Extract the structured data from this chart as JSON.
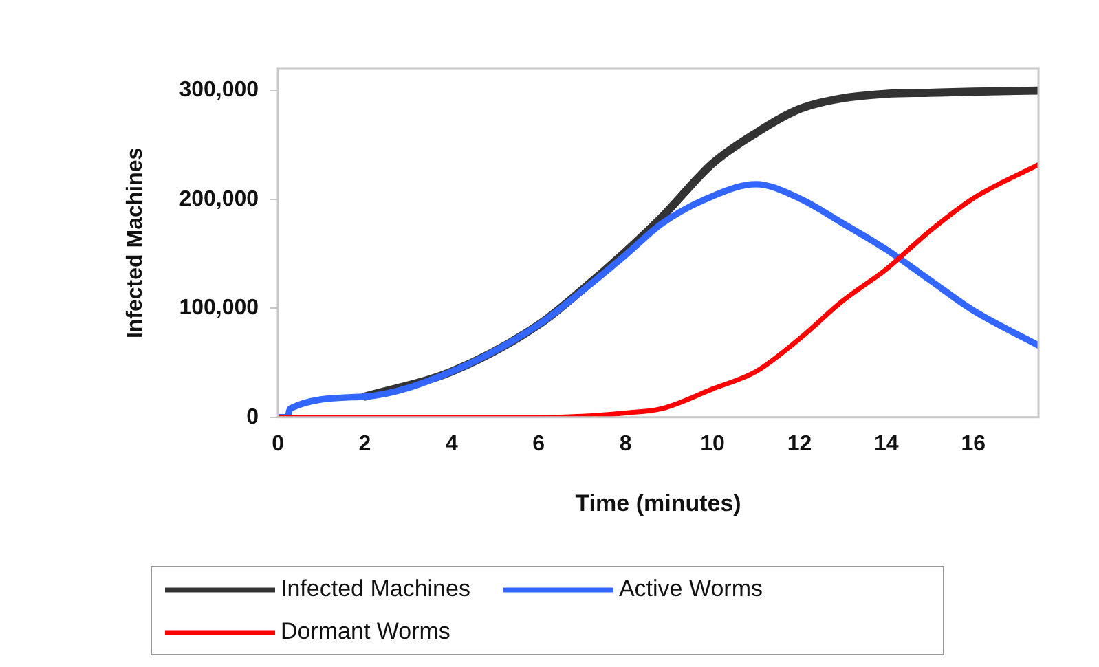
{
  "chart_data": {
    "type": "line",
    "xlabel": "Time (minutes)",
    "ylabel": "Infected Machines",
    "xlim": [
      0,
      17.5
    ],
    "xticks": [
      0,
      2,
      4,
      6,
      8,
      10,
      12,
      14,
      16
    ],
    "ylim": [
      0,
      320000
    ],
    "yticks": [
      0,
      {
        "value": 100000,
        "label": "100,000"
      },
      {
        "value": 200000,
        "label": "200,000"
      },
      {
        "value": 300000,
        "label": "300,000"
      }
    ],
    "grid": false,
    "legend": "bottom",
    "marker": "none",
    "line_style": "solid",
    "series": [
      {
        "name": "Infected Machines",
        "color": "#333333",
        "x": [
          2,
          4,
          6,
          7,
          8,
          8.84,
          10,
          11,
          12,
          13,
          14,
          15,
          16,
          17.5
        ],
        "values": [
          19000,
          42000,
          85000,
          117000,
          152000,
          184000,
          233000,
          261000,
          283000,
          293000,
          297000,
          298000,
          299000,
          300000
        ]
      },
      {
        "name": "Active Worms",
        "color": "#3366ff",
        "x": [
          0,
          0.22,
          0.28,
          2,
          4,
          6,
          7,
          8,
          8.84,
          10,
          11,
          12,
          13,
          14,
          15,
          16,
          17.5
        ],
        "values": [
          0,
          0,
          8000,
          19000,
          42000,
          85000,
          116000,
          149000,
          178000,
          203000,
          214000,
          201000,
          178000,
          154000,
          126000,
          98000,
          66000
        ]
      },
      {
        "name": "Dormant Worms",
        "color": "#ff0000",
        "x": [
          0,
          6,
          7,
          8,
          8.84,
          10,
          11,
          12,
          13,
          14,
          15,
          16,
          17.5
        ],
        "values": [
          0,
          0,
          1000,
          4000,
          8000,
          26000,
          42000,
          72000,
          107000,
          136000,
          171000,
          201000,
          232000
        ]
      }
    ]
  }
}
